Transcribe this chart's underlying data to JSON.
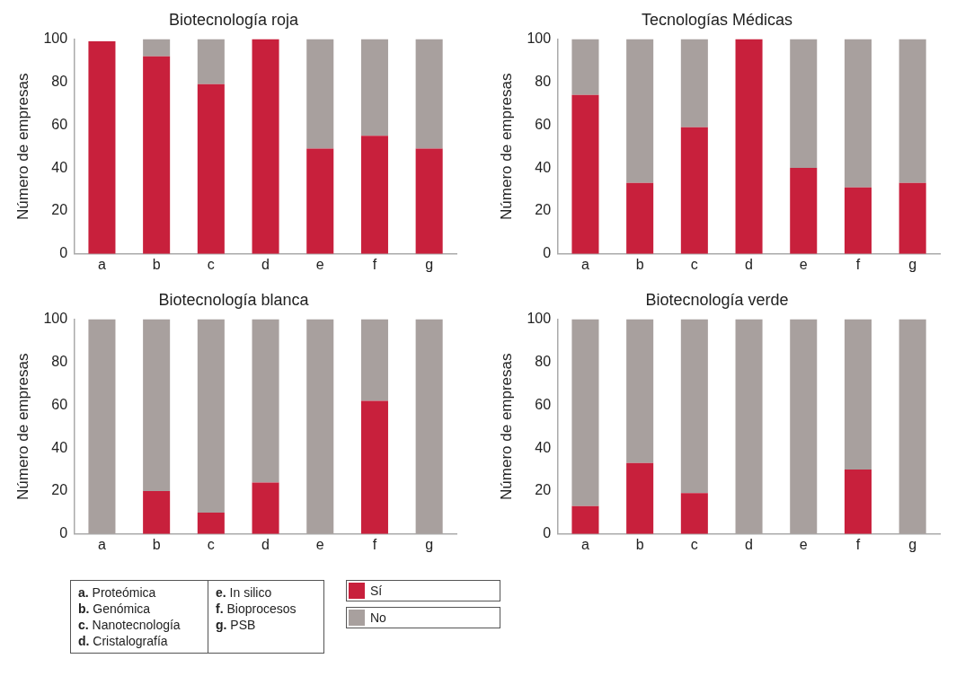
{
  "chart_data": [
    {
      "type": "bar",
      "stacked": true,
      "title": "Biotecnología roja",
      "ylabel": "Número de empresas",
      "categories": [
        "a",
        "b",
        "c",
        "d",
        "e",
        "f",
        "g"
      ],
      "ylim": [
        0,
        100
      ],
      "yticks": [
        0,
        20,
        40,
        60,
        80,
        100
      ],
      "grid": false,
      "legend": "bottom",
      "series": [
        {
          "name": "Sí",
          "color": "#c8203c",
          "values": [
            99,
            92,
            79,
            100,
            49,
            55,
            49
          ]
        },
        {
          "name": "No",
          "color": "#a8a09e",
          "values": [
            0,
            8,
            21,
            0,
            51,
            45,
            51
          ]
        }
      ],
      "annotations": [
        "a. Proteómica",
        "b. Genómica",
        "c. Nanotecnología",
        "d. Cristalografía",
        "e. In silico",
        "f. Bioprocesos",
        "g. PSB"
      ]
    },
    {
      "type": "bar",
      "stacked": true,
      "title": "Tecnologías Médicas",
      "ylabel": "Número de empresas",
      "categories": [
        "a",
        "b",
        "c",
        "d",
        "e",
        "f",
        "g"
      ],
      "ylim": [
        0,
        100
      ],
      "yticks": [
        0,
        20,
        40,
        60,
        80,
        100
      ],
      "grid": false,
      "series": [
        {
          "color": "#c8203c",
          "values": [
            74,
            33,
            59,
            100,
            40,
            31,
            33
          ]
        },
        {
          "color": "#a8a09e",
          "values": [
            26,
            67,
            41,
            0,
            60,
            69,
            67
          ]
        }
      ]
    },
    {
      "type": "bar",
      "stacked": true,
      "title": "Biotecnología blanca",
      "ylabel": "Número de empresas",
      "categories": [
        "a",
        "b",
        "c",
        "d",
        "e",
        "f",
        "g"
      ],
      "ylim": [
        0,
        100
      ],
      "yticks": [
        0,
        20,
        40,
        60,
        80,
        100
      ],
      "grid": false,
      "series": [
        {
          "color": "#c8203c",
          "values": [
            0,
            20,
            10,
            24,
            0,
            62,
            0
          ]
        },
        {
          "color": "#a8a09e",
          "values": [
            100,
            80,
            90,
            76,
            100,
            38,
            100
          ]
        }
      ]
    },
    {
      "type": "bar",
      "stacked": true,
      "title": "Biotecnología verde",
      "ylabel": "Número de empresas",
      "categories": [
        "a",
        "b",
        "c",
        "d",
        "e",
        "f",
        "g"
      ],
      "ylim": [
        0,
        100
      ],
      "yticks": [
        0,
        20,
        40,
        60,
        80,
        100
      ],
      "grid": false,
      "series": [
        {
          "color": "#c8203c",
          "values": [
            13,
            33,
            19,
            0,
            0,
            30,
            0
          ]
        },
        {
          "color": "#a8a09e",
          "values": [
            87,
            67,
            81,
            100,
            100,
            70,
            100
          ]
        }
      ]
    }
  ]
}
